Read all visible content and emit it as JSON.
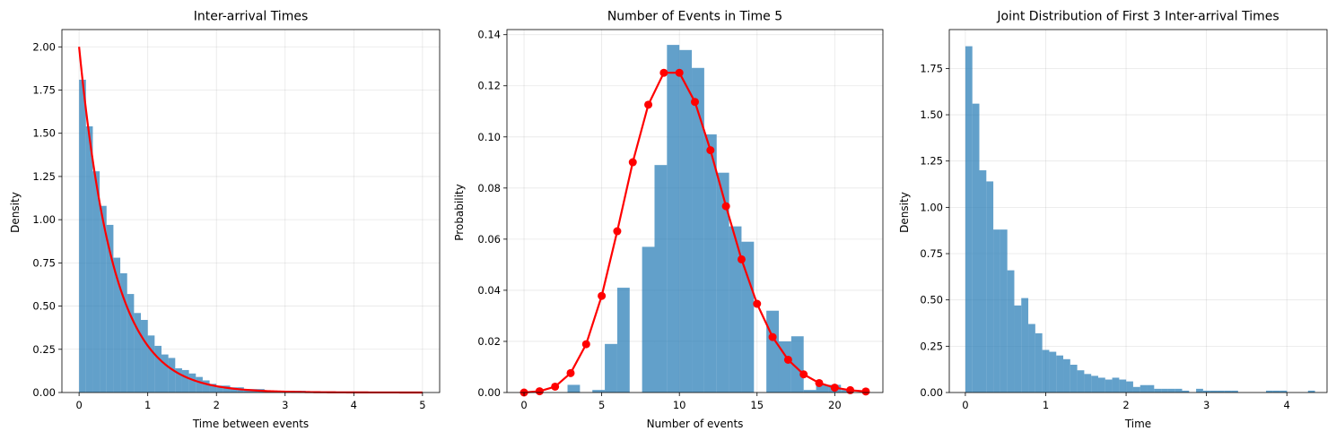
{
  "chart_data": [
    {
      "type": "bar",
      "title": "Inter-arrival Times",
      "xlabel": "Time between events",
      "ylabel": "Density",
      "xlim": [
        -0.25,
        5.25
      ],
      "ylim": [
        0,
        2.1
      ],
      "xticks": [
        "0",
        "1",
        "2",
        "3",
        "4",
        "5"
      ],
      "yticks": [
        "0.00",
        "0.25",
        "0.50",
        "0.75",
        "1.00",
        "1.25",
        "1.50",
        "1.75",
        "2.00"
      ],
      "grid": true,
      "bar_color": "#1f77b4",
      "bar_alpha": 0.7,
      "line_color": "#ff0000",
      "bins": {
        "start": 0,
        "width": 0.1,
        "values": [
          1.81,
          1.54,
          1.28,
          1.08,
          0.97,
          0.78,
          0.69,
          0.57,
          0.46,
          0.42,
          0.33,
          0.27,
          0.22,
          0.2,
          0.14,
          0.13,
          0.11,
          0.09,
          0.07,
          0.05,
          0.04,
          0.04,
          0.03,
          0.03,
          0.02,
          0.02,
          0.02,
          0.01,
          0.01,
          0.01,
          0.01,
          0.01,
          0.01,
          0.0,
          0.0,
          0.0,
          0.0,
          0.0,
          0.0,
          0.0
        ]
      },
      "line": {
        "kind": "function",
        "expression": "2*exp(-2x)",
        "x_range": [
          0,
          5
        ],
        "rate": 2
      }
    },
    {
      "type": "bar",
      "title": "Number of Events in Time 5",
      "xlabel": "Number of events",
      "ylabel": "Probability",
      "xlim": [
        -1.1,
        23.1
      ],
      "ylim": [
        0,
        0.142
      ],
      "xticks": [
        "0",
        "5",
        "10",
        "15",
        "20"
      ],
      "yticks": [
        "0.00",
        "0.02",
        "0.04",
        "0.06",
        "0.08",
        "0.10",
        "0.12",
        "0.14"
      ],
      "grid": true,
      "bar_color": "#1f77b4",
      "bar_alpha": 0.7,
      "line_color": "#ff0000",
      "bins": {
        "start": 2,
        "width": 0.8,
        "values": [
          0.0,
          0.003,
          0.0,
          0.001,
          0.019,
          0.041,
          0.0,
          0.057,
          0.089,
          0.136,
          0.134,
          0.127,
          0.101,
          0.086,
          0.065,
          0.059,
          0.0,
          0.032,
          0.02,
          0.022,
          0.001,
          0.003,
          0.003,
          0.001,
          0.0,
          0.0
        ]
      },
      "line": {
        "kind": "points",
        "x": [
          0,
          1,
          2,
          3,
          4,
          5,
          6,
          7,
          8,
          9,
          10,
          11,
          12,
          13,
          14,
          15,
          16,
          17,
          18,
          19,
          20,
          21,
          22
        ],
        "y": [
          0.0,
          0.0005,
          0.0023,
          0.0076,
          0.0189,
          0.0378,
          0.0631,
          0.0901,
          0.1126,
          0.1251,
          0.1251,
          0.1137,
          0.0948,
          0.0729,
          0.0521,
          0.0347,
          0.0217,
          0.0128,
          0.0071,
          0.0037,
          0.0019,
          0.0009,
          0.0004
        ]
      }
    },
    {
      "type": "bar",
      "title": "Joint Distribution of First 3 Inter-arrival Times",
      "xlabel": "Time",
      "ylabel": "Density",
      "xlim": [
        -0.2,
        4.5
      ],
      "ylim": [
        0,
        1.96
      ],
      "xticks": [
        "0",
        "1",
        "2",
        "3",
        "4"
      ],
      "yticks": [
        "0.00",
        "0.25",
        "0.50",
        "0.75",
        "1.00",
        "1.25",
        "1.50",
        "1.75"
      ],
      "grid": true,
      "bar_color": "#1f77b4",
      "bar_alpha": 0.7,
      "bins": {
        "start": 0,
        "width": 0.087,
        "values": [
          1.87,
          1.56,
          1.2,
          1.14,
          0.88,
          0.88,
          0.66,
          0.47,
          0.51,
          0.37,
          0.32,
          0.23,
          0.22,
          0.2,
          0.18,
          0.15,
          0.12,
          0.1,
          0.09,
          0.08,
          0.07,
          0.08,
          0.07,
          0.06,
          0.03,
          0.04,
          0.04,
          0.02,
          0.02,
          0.02,
          0.02,
          0.01,
          0.0,
          0.02,
          0.01,
          0.01,
          0.01,
          0.01,
          0.01,
          0.0,
          0.0,
          0.0,
          0.0,
          0.01,
          0.01,
          0.01,
          0.0,
          0.0,
          0.0,
          0.01
        ]
      }
    }
  ]
}
